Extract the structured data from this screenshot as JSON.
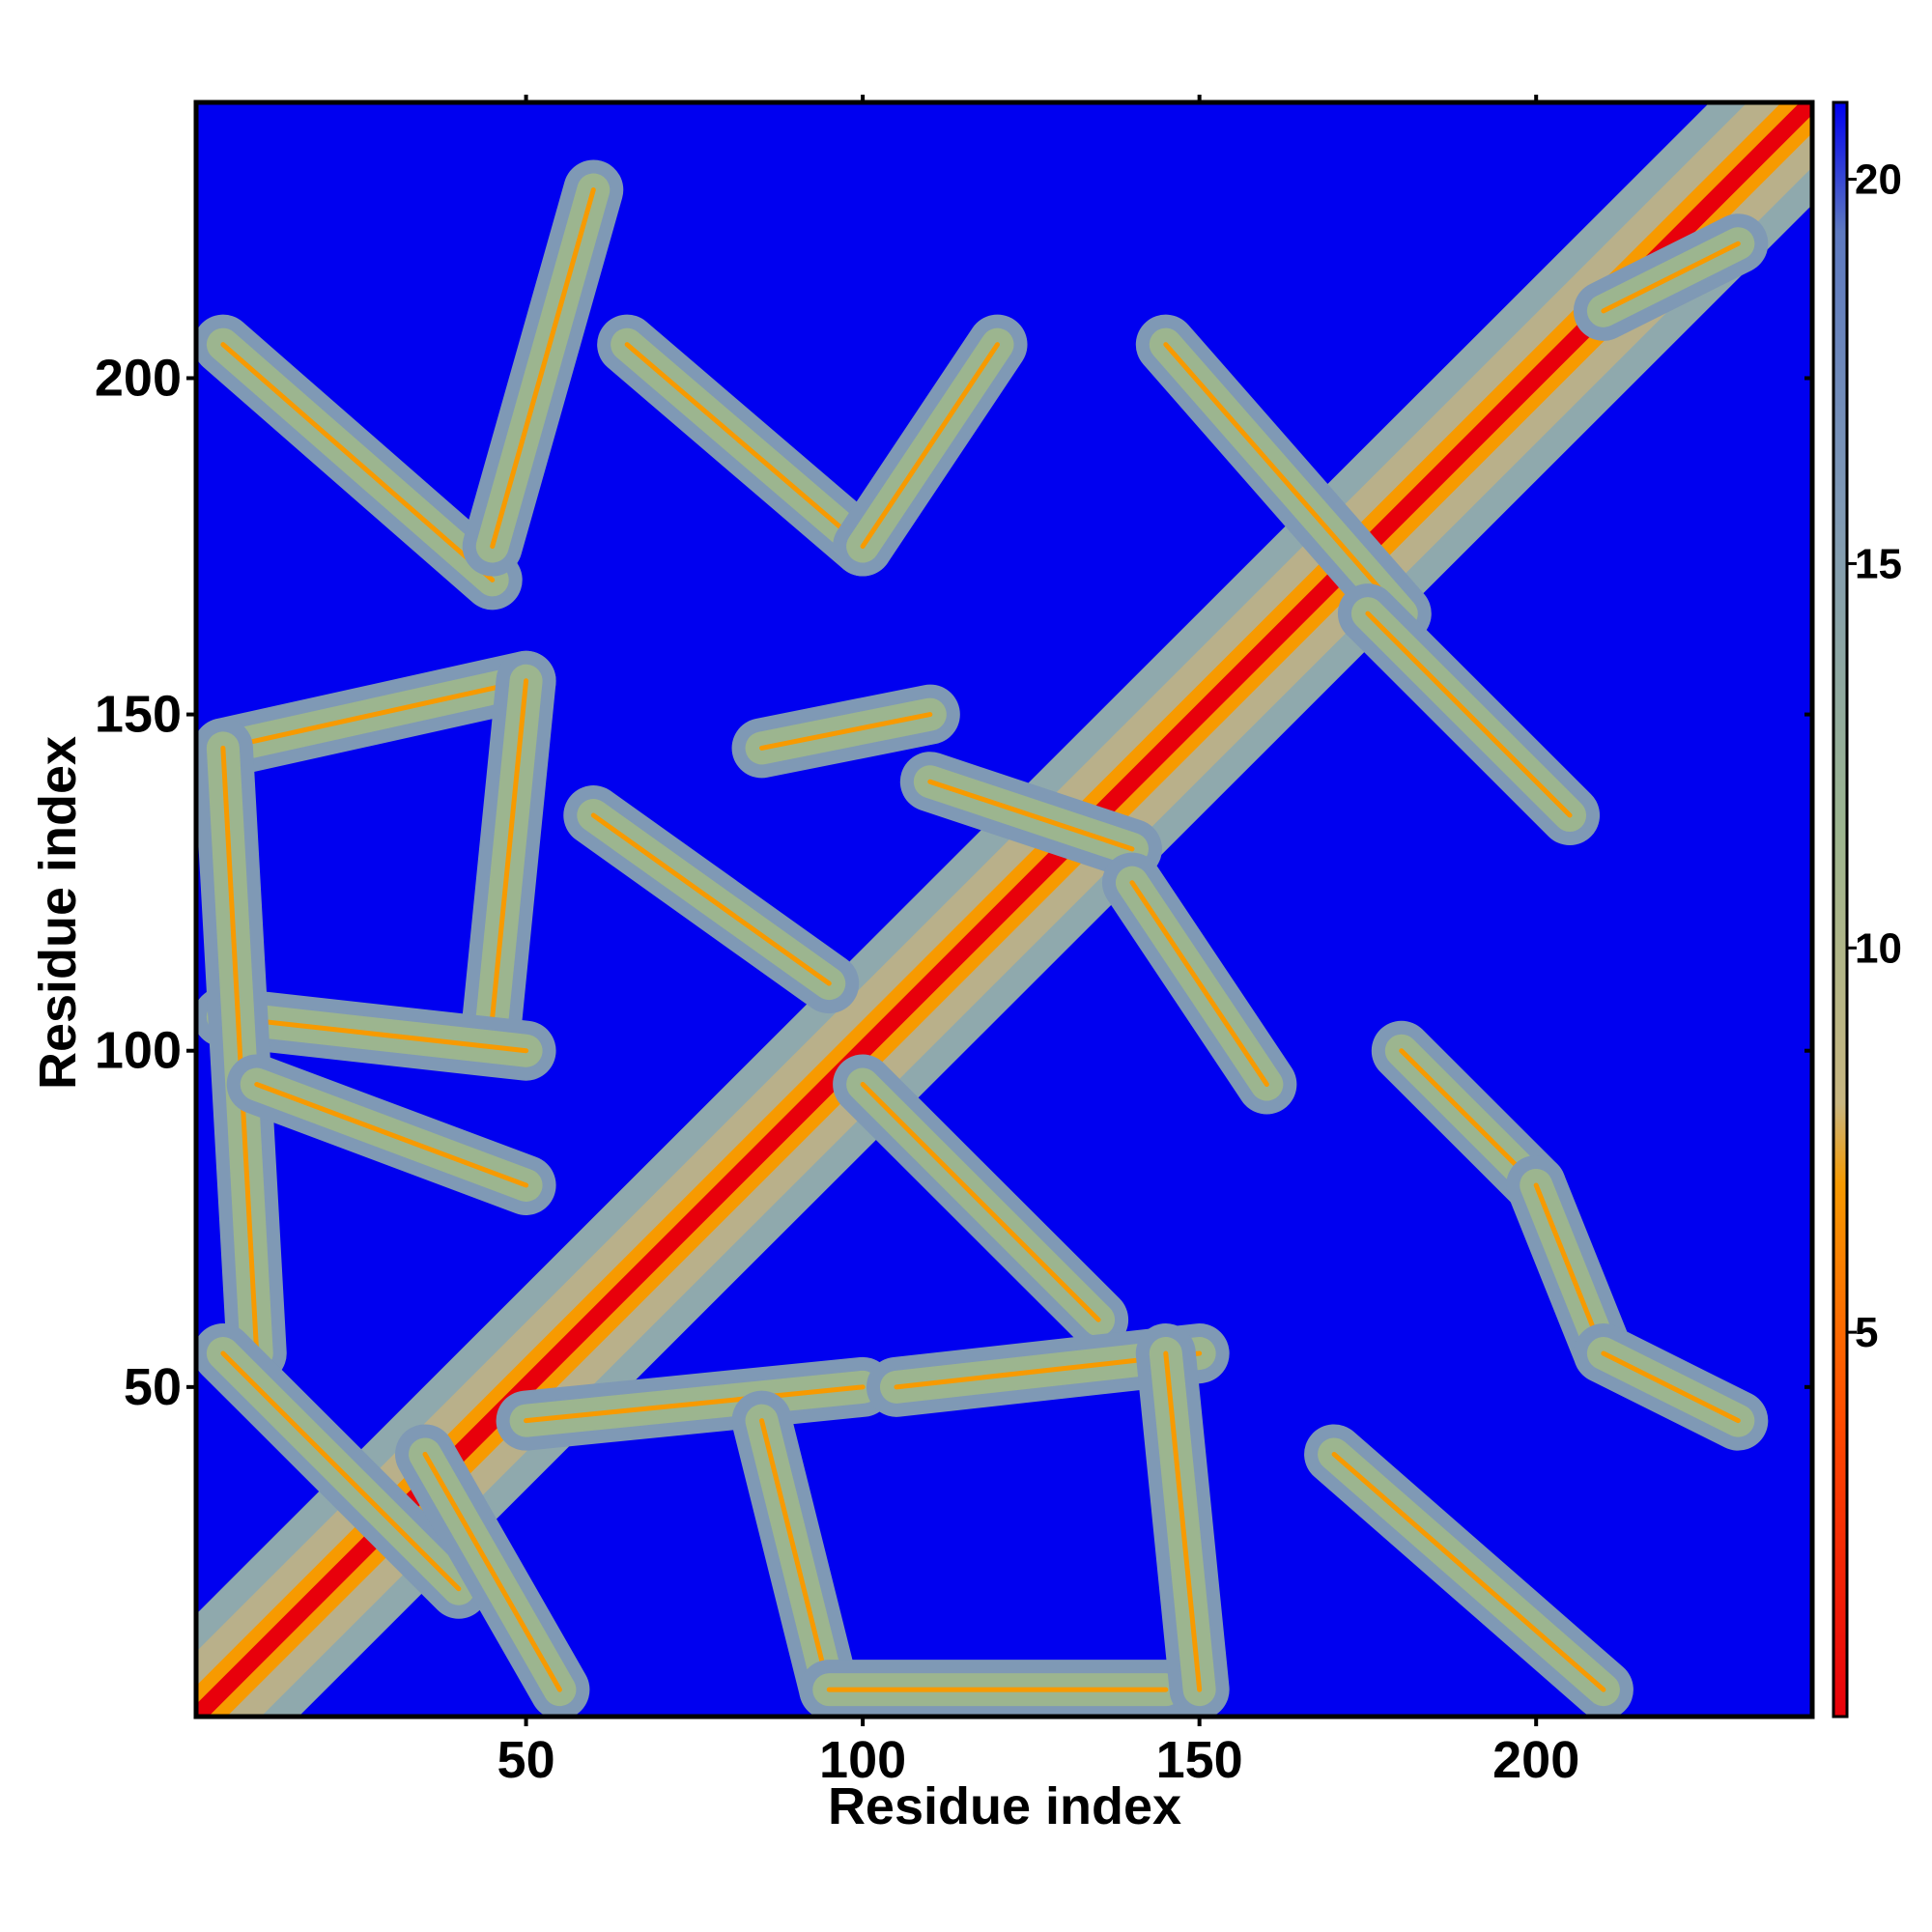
{
  "chart_data": {
    "type": "heatmap",
    "title": "",
    "xlabel": "Residue index",
    "ylabel": "Residue index",
    "xlim": [
      1,
      241
    ],
    "ylim": [
      1,
      241
    ],
    "x_ticks": [
      50,
      100,
      150,
      200
    ],
    "y_ticks": [
      50,
      100,
      150,
      200
    ],
    "colorbar": {
      "ticks": [
        5,
        10,
        15,
        20
      ],
      "range": [
        0,
        21
      ],
      "colors": {
        "near": "#e8000b",
        "mid": "#f79a00",
        "contact": "#9cb58f",
        "far": "#0000f0"
      }
    },
    "diagonal": {
      "x_start": 1,
      "x_end": 241
    },
    "off_diagonal_contacts": [
      {
        "x": [
          5,
          45
        ],
        "y": [
          205,
          170
        ],
        "value": 10
      },
      {
        "x": [
          45,
          60
        ],
        "y": [
          175,
          228
        ],
        "value": 11
      },
      {
        "x": [
          65,
          100
        ],
        "y": [
          205,
          175
        ],
        "value": 10
      },
      {
        "x": [
          100,
          120
        ],
        "y": [
          175,
          205
        ],
        "value": 11
      },
      {
        "x": [
          145,
          180
        ],
        "y": [
          205,
          165
        ],
        "value": 10
      },
      {
        "x": [
          175,
          205
        ],
        "y": [
          165,
          135
        ],
        "value": 10
      },
      {
        "x": [
          5,
          50
        ],
        "y": [
          145,
          155
        ],
        "value": 10
      },
      {
        "x": [
          50,
          45
        ],
        "y": [
          155,
          105
        ],
        "value": 10
      },
      {
        "x": [
          5,
          50
        ],
        "y": [
          105,
          100
        ],
        "value": 10
      },
      {
        "x": [
          5,
          10
        ],
        "y": [
          145,
          55
        ],
        "value": 11
      },
      {
        "x": [
          60,
          95
        ],
        "y": [
          135,
          110
        ],
        "value": 9
      },
      {
        "x": [
          85,
          110
        ],
        "y": [
          145,
          150
        ],
        "value": 10
      },
      {
        "x": [
          110,
          140
        ],
        "y": [
          140,
          130
        ],
        "value": 10
      },
      {
        "x": [
          140,
          160
        ],
        "y": [
          125,
          95
        ],
        "value": 10
      },
      {
        "x": [
          100,
          135
        ],
        "y": [
          95,
          60
        ],
        "value": 9
      },
      {
        "x": [
          5,
          40
        ],
        "y": [
          55,
          20
        ],
        "value": 10
      },
      {
        "x": [
          10,
          50
        ],
        "y": [
          95,
          80
        ],
        "value": 11
      },
      {
        "x": [
          35,
          55
        ],
        "y": [
          40,
          5
        ],
        "value": 9
      },
      {
        "x": [
          50,
          100
        ],
        "y": [
          45,
          50
        ],
        "value": 11
      },
      {
        "x": [
          85,
          95
        ],
        "y": [
          45,
          5
        ],
        "value": 11
      },
      {
        "x": [
          95,
          145
        ],
        "y": [
          5,
          5
        ],
        "value": 10
      },
      {
        "x": [
          105,
          150
        ],
        "y": [
          50,
          55
        ],
        "value": 10
      },
      {
        "x": [
          145,
          150
        ],
        "y": [
          55,
          5
        ],
        "value": 11
      },
      {
        "x": [
          170,
          210
        ],
        "y": [
          40,
          5
        ],
        "value": 10
      },
      {
        "x": [
          180,
          200
        ],
        "y": [
          100,
          80
        ],
        "value": 10
      },
      {
        "x": [
          200,
          210
        ],
        "y": [
          80,
          55
        ],
        "value": 11
      },
      {
        "x": [
          210,
          230
        ],
        "y": [
          55,
          45
        ],
        "value": 12
      },
      {
        "x": [
          210,
          230
        ],
        "y": [
          210,
          220
        ],
        "value": 12
      }
    ]
  }
}
